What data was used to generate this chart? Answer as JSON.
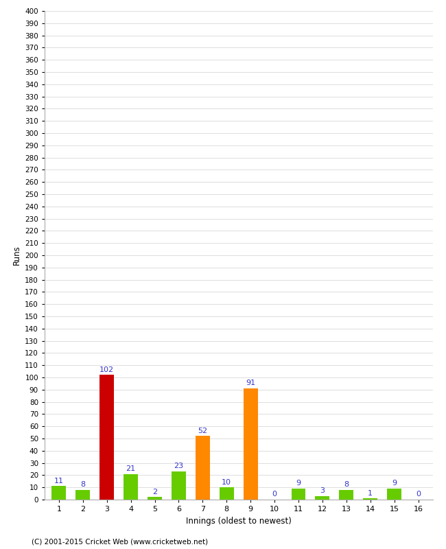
{
  "xlabel": "Innings (oldest to newest)",
  "ylabel": "Runs",
  "values": [
    11,
    8,
    102,
    21,
    2,
    23,
    52,
    10,
    91,
    0,
    9,
    3,
    8,
    1,
    9,
    0
  ],
  "colors": [
    "#66cc00",
    "#66cc00",
    "#cc0000",
    "#66cc00",
    "#66cc00",
    "#66cc00",
    "#ff8800",
    "#66cc00",
    "#ff8800",
    "#66cc00",
    "#66cc00",
    "#66cc00",
    "#66cc00",
    "#66cc00",
    "#66cc00",
    "#66cc00"
  ],
  "ylim": [
    0,
    400
  ],
  "ytick_step": 10,
  "background_color": "#ffffff",
  "grid_color": "#dddddd",
  "label_color": "#3333cc",
  "footer": "(C) 2001-2015 Cricket Web (www.cricketweb.net)"
}
